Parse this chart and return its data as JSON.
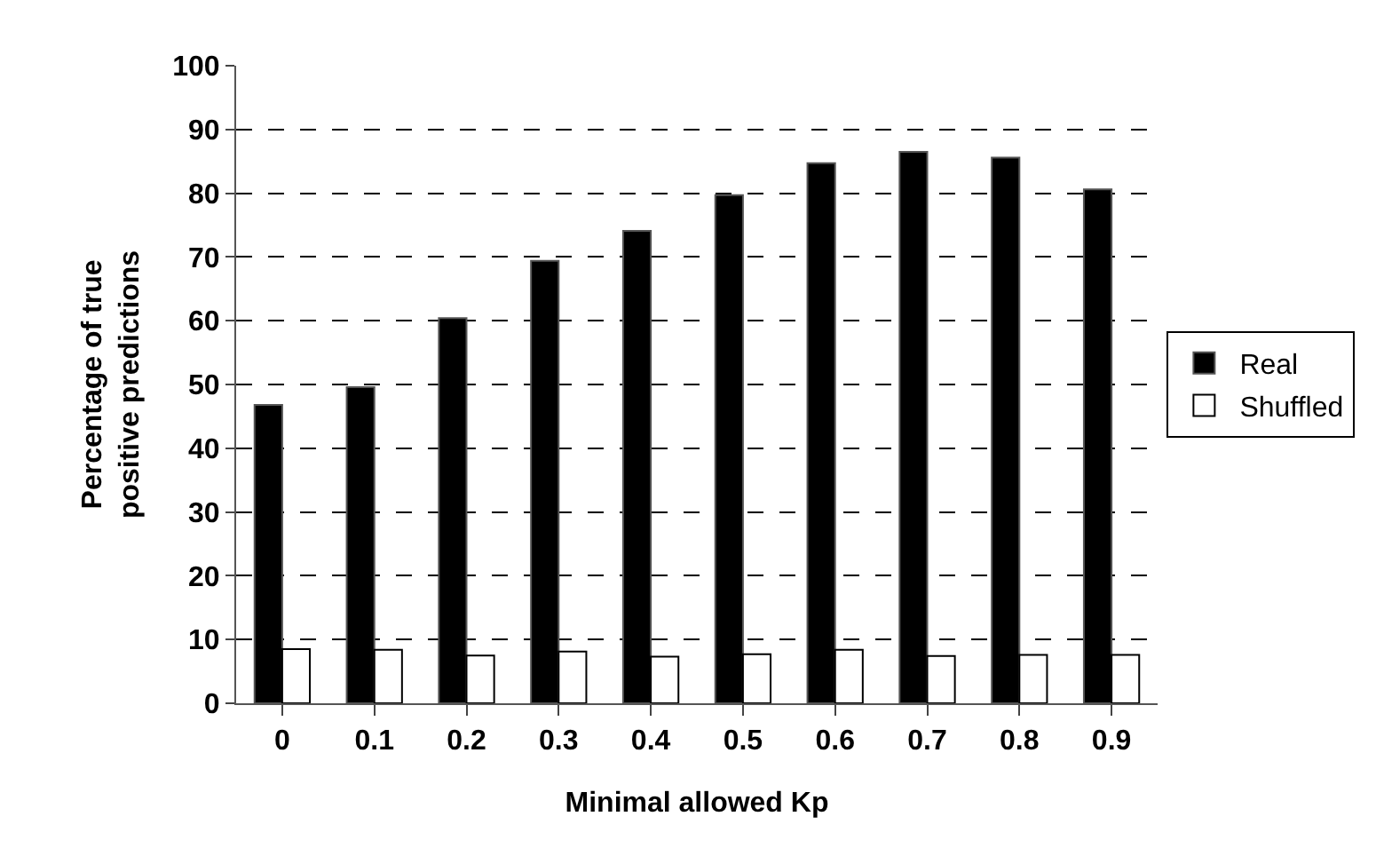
{
  "chart_data": {
    "type": "bar",
    "xlabel": "Minimal allowed Kp",
    "ylabel": "Percentage of true positive predictions",
    "categories": [
      "0",
      "0.1",
      "0.2",
      "0.3",
      "0.4",
      "0.5",
      "0.6",
      "0.7",
      "0.8",
      "0.9"
    ],
    "series": [
      {
        "name": "Real",
        "color": "#000000",
        "values": [
          46.8,
          49.6,
          60.4,
          69.4,
          74.1,
          79.7,
          84.7,
          86.5,
          85.6,
          80.6
        ]
      },
      {
        "name": "Shuffled",
        "color": "#ffffff",
        "values": [
          8.5,
          8.4,
          7.5,
          8.1,
          7.3,
          7.7,
          8.4,
          7.4,
          7.6,
          7.6
        ]
      }
    ],
    "ylim": [
      0,
      100
    ],
    "yticks": [
      0,
      10,
      20,
      30,
      40,
      50,
      60,
      70,
      80,
      90,
      100
    ],
    "grid": "y",
    "legend": "right"
  }
}
